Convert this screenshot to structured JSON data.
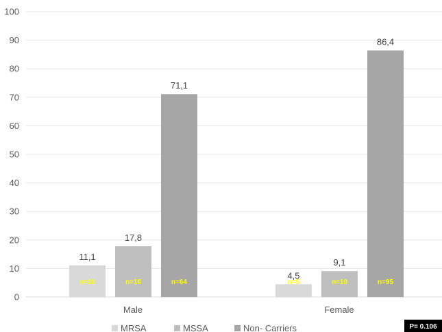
{
  "chart_data": {
    "type": "bar",
    "categories": [
      "Male",
      "Female"
    ],
    "series": [
      {
        "name": "MRSA",
        "values": [
          11.1,
          4.5
        ],
        "value_labels": [
          "11,1",
          "4,5"
        ],
        "n_labels": [
          "n=10",
          "n=5"
        ],
        "color": "#d9d9d9"
      },
      {
        "name": "MSSA",
        "values": [
          17.8,
          9.1
        ],
        "value_labels": [
          "17,8",
          "9,1"
        ],
        "n_labels": [
          "n=16",
          "n=10"
        ],
        "color": "#bfbfbf"
      },
      {
        "name": "Non- Carriers",
        "values": [
          71.1,
          86.4
        ],
        "value_labels": [
          "71,1",
          "86,4"
        ],
        "n_labels": [
          "n=64",
          "n=95"
        ],
        "color": "#a6a6a6"
      }
    ],
    "y_ticks": [
      "0",
      "10",
      "20",
      "30",
      "40",
      "50",
      "60",
      "70",
      "80",
      "90",
      "100"
    ],
    "ylim": [
      0,
      100
    ],
    "grid": true,
    "legend_position": "bottom",
    "annotation": "P= 0.106",
    "n_label_color": "#ffff00"
  }
}
